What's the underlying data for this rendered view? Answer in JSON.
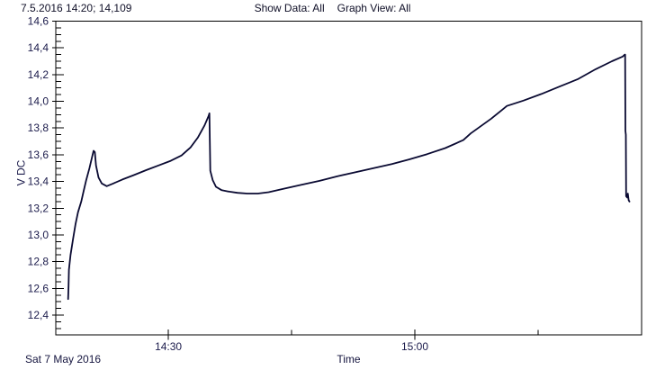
{
  "header": {
    "cursor_readout": "7.5.2016 14:20; 14,109",
    "show_data_label": "Show Data: All",
    "graph_view_label": "Graph View: All"
  },
  "footer": {
    "date_label": "Sat 7 May 2016"
  },
  "chart_data": {
    "type": "line",
    "title": "",
    "xlabel": "Time",
    "ylabel": "V DC",
    "grid": false,
    "legend": null,
    "x_axis": {
      "xlim_minutes_after_1400": [
        16.3,
        87.6
      ],
      "ticks": [
        {
          "label": "14:30",
          "minutes": 30,
          "major": true
        },
        {
          "label": "",
          "minutes": 45,
          "major": false
        },
        {
          "label": "15:00",
          "minutes": 60,
          "major": true
        },
        {
          "label": "",
          "minutes": 75,
          "major": false
        }
      ]
    },
    "y_axis": {
      "ylim": [
        12.252,
        14.6
      ],
      "minor_step": 0.05,
      "major_ticks": [
        {
          "value": 12.4,
          "label": "12,4"
        },
        {
          "value": 12.6,
          "label": "12,6"
        },
        {
          "value": 12.8,
          "label": "12,8"
        },
        {
          "value": 13.0,
          "label": "13,0"
        },
        {
          "value": 13.2,
          "label": "13,2"
        },
        {
          "value": 13.4,
          "label": "13,4"
        },
        {
          "value": 13.6,
          "label": "13,6"
        },
        {
          "value": 13.8,
          "label": "13,8"
        },
        {
          "value": 14.0,
          "label": "14,0"
        },
        {
          "value": 14.2,
          "label": "14,2"
        },
        {
          "value": 14.4,
          "label": "14,4"
        },
        {
          "value": 14.6,
          "label": "14,6"
        }
      ]
    },
    "series": [
      {
        "name": "V DC",
        "color": "#0a0a32",
        "points_minutes_volts": [
          [
            17.8,
            12.52
          ],
          [
            17.85,
            12.62
          ],
          [
            17.9,
            12.74
          ],
          [
            18.1,
            12.85
          ],
          [
            18.4,
            12.97
          ],
          [
            18.7,
            13.08
          ],
          [
            19.0,
            13.17
          ],
          [
            19.4,
            13.25
          ],
          [
            19.7,
            13.33
          ],
          [
            20.0,
            13.41
          ],
          [
            20.4,
            13.5
          ],
          [
            20.7,
            13.58
          ],
          [
            20.9,
            13.63
          ],
          [
            21.05,
            13.62
          ],
          [
            21.2,
            13.52
          ],
          [
            21.5,
            13.43
          ],
          [
            21.9,
            13.385
          ],
          [
            22.5,
            13.365
          ],
          [
            23.3,
            13.385
          ],
          [
            24.4,
            13.415
          ],
          [
            25.7,
            13.445
          ],
          [
            27.3,
            13.485
          ],
          [
            28.8,
            13.52
          ],
          [
            30.3,
            13.555
          ],
          [
            31.6,
            13.595
          ],
          [
            32.7,
            13.655
          ],
          [
            33.6,
            13.73
          ],
          [
            34.4,
            13.82
          ],
          [
            34.9,
            13.89
          ],
          [
            35.0,
            13.91
          ],
          [
            35.05,
            13.7
          ],
          [
            35.1,
            13.48
          ],
          [
            35.4,
            13.41
          ],
          [
            35.8,
            13.36
          ],
          [
            36.5,
            13.335
          ],
          [
            37.3,
            13.325
          ],
          [
            38.4,
            13.315
          ],
          [
            39.6,
            13.31
          ],
          [
            40.9,
            13.31
          ],
          [
            42.2,
            13.32
          ],
          [
            44.0,
            13.345
          ],
          [
            46.2,
            13.375
          ],
          [
            48.4,
            13.405
          ],
          [
            50.6,
            13.44
          ],
          [
            52.8,
            13.47
          ],
          [
            55.0,
            13.5
          ],
          [
            57.2,
            13.53
          ],
          [
            59.3,
            13.565
          ],
          [
            61.5,
            13.605
          ],
          [
            63.7,
            13.65
          ],
          [
            65.9,
            13.71
          ],
          [
            66.8,
            13.76
          ],
          [
            69.3,
            13.87
          ],
          [
            70.5,
            13.93
          ],
          [
            71.2,
            13.965
          ],
          [
            73.2,
            14.005
          ],
          [
            75.4,
            14.055
          ],
          [
            77.6,
            14.11
          ],
          [
            79.8,
            14.165
          ],
          [
            82.0,
            14.24
          ],
          [
            84.0,
            14.3
          ],
          [
            85.3,
            14.335
          ],
          [
            85.55,
            14.35
          ],
          [
            85.6,
            14.35
          ],
          [
            85.63,
            13.78
          ],
          [
            85.68,
            13.75
          ],
          [
            85.72,
            13.29
          ],
          [
            85.85,
            13.28
          ],
          [
            85.92,
            13.31
          ],
          [
            86.02,
            13.26
          ],
          [
            86.12,
            13.25
          ]
        ]
      }
    ]
  }
}
